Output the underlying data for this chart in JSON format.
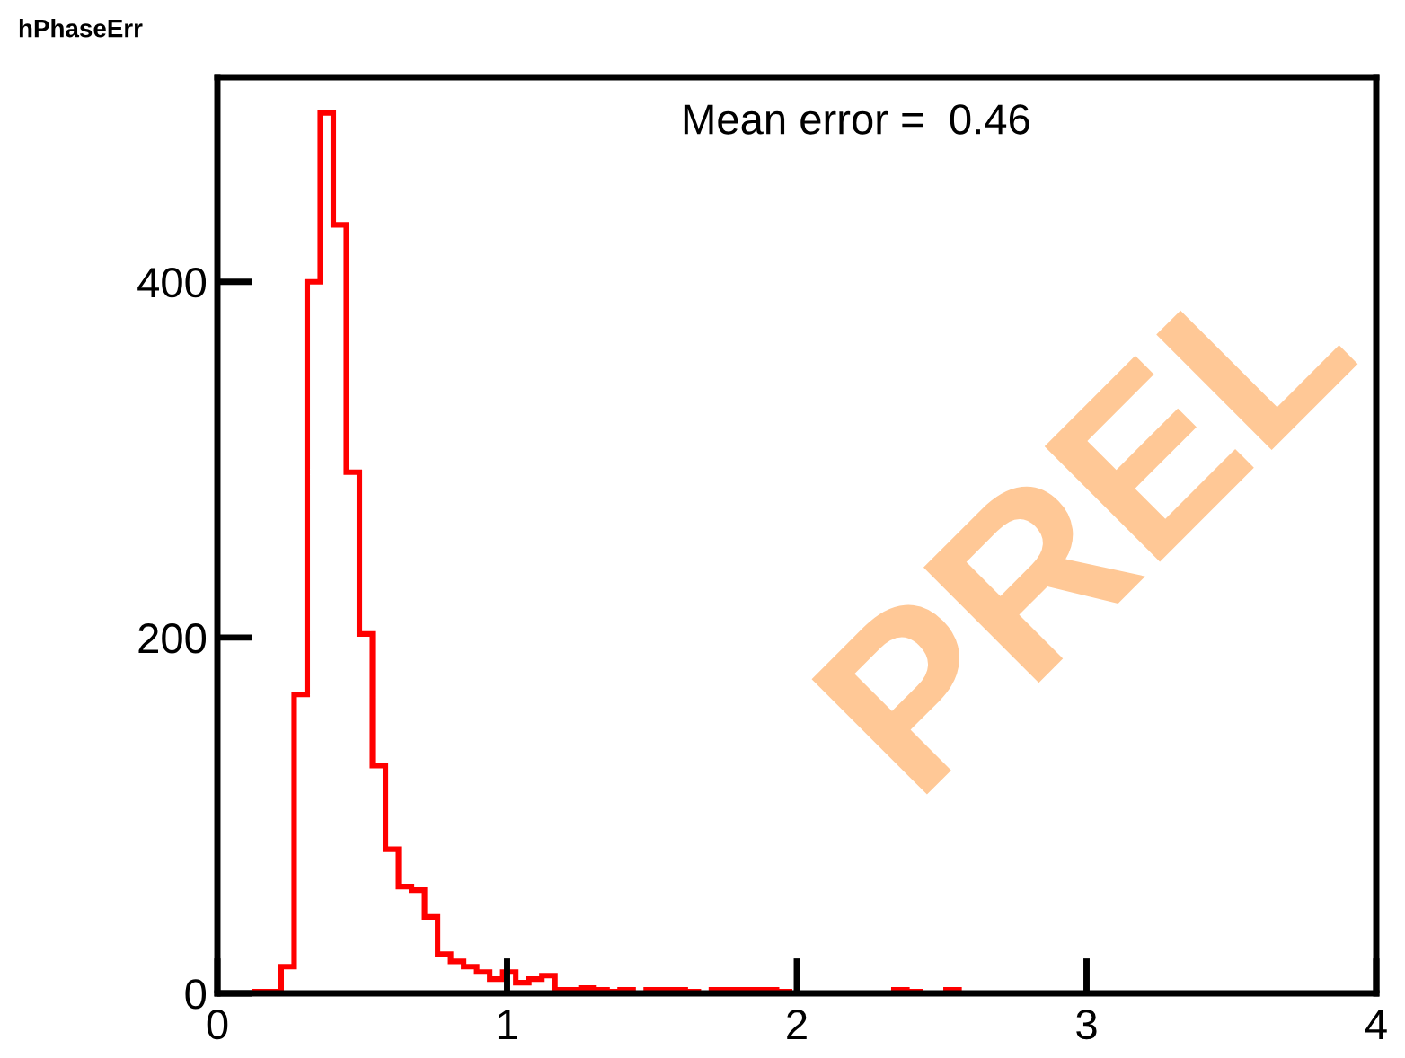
{
  "chart_data": {
    "type": "histogram",
    "title": "hPhaseErr",
    "color": "#ff0000",
    "bins": [
      0.13,
      0.175,
      0.22,
      0.265,
      0.31,
      0.355,
      0.4,
      0.445,
      0.49,
      0.535,
      0.58,
      0.625,
      0.67,
      0.715,
      0.76,
      0.805,
      0.85,
      0.895,
      0.94,
      0.985,
      1.03,
      1.075,
      1.12,
      1.165,
      1.21,
      1.255,
      1.3,
      1.345,
      1.39,
      1.435,
      1.48,
      1.525,
      1.57,
      1.615,
      1.66,
      1.705,
      1.75,
      1.795,
      1.84,
      1.885,
      1.93,
      1.975,
      2.02,
      2.065,
      2.11,
      2.155,
      2.2,
      2.245,
      2.29,
      2.335,
      2.38,
      2.425,
      2.47,
      2.515,
      2.56,
      2.605
    ],
    "values": [
      1,
      1,
      15,
      168,
      400,
      495,
      432,
      293,
      202,
      128,
      81,
      60,
      58,
      43,
      22,
      18,
      15,
      12,
      8,
      12,
      6,
      8,
      10,
      2,
      2,
      3,
      2,
      1,
      2,
      0,
      2,
      2,
      2,
      1,
      0,
      2,
      2,
      2,
      2,
      2,
      1,
      0,
      0,
      0,
      0,
      0,
      0,
      0,
      0,
      2,
      1,
      0,
      0,
      2,
      0
    ],
    "xlim": [
      0,
      4
    ],
    "xticks": [
      0,
      1,
      2,
      3,
      4
    ],
    "ylim": [
      0,
      515
    ],
    "yticks": [
      0,
      200,
      400
    ],
    "grid": false,
    "annotations": [
      "Mean error =  0.46",
      "PREL"
    ]
  }
}
